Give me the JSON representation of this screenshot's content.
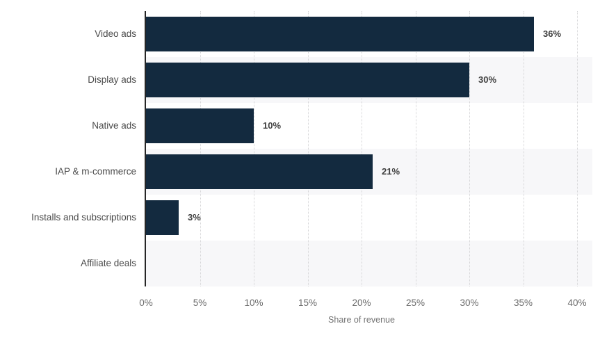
{
  "chart_data": {
    "type": "bar",
    "orientation": "horizontal",
    "title": "",
    "categories": [
      "Video ads",
      "Display ads",
      "Native ads",
      "IAP & m-commerce",
      "Installs and subscriptions",
      "Affiliate deals"
    ],
    "values": [
      36,
      30,
      10,
      21,
      3,
      0
    ],
    "value_labels": [
      "36%",
      "30%",
      "10%",
      "21%",
      "3%",
      ""
    ],
    "xlabel": "Share of revenue",
    "ylabel": "",
    "xlim": [
      0,
      40
    ],
    "x_tick_values": [
      0,
      5,
      10,
      15,
      20,
      25,
      30,
      35,
      40
    ],
    "x_tick_labels": [
      "0%",
      "5%",
      "10%",
      "15%",
      "20%",
      "25%",
      "30%",
      "35%",
      "40%"
    ],
    "grid": "vertical-dotted",
    "legend": "none",
    "row_shading": "alternate"
  },
  "colors": {
    "bar": "#132a3f",
    "band_alt": "#f7f7f9",
    "gridline": "#d4d4d6",
    "axis_line": "#262626",
    "tick_label": "#6b6b6b",
    "category_label": "#4a4a4a",
    "value_label": "#404040",
    "background": "#ffffff"
  }
}
